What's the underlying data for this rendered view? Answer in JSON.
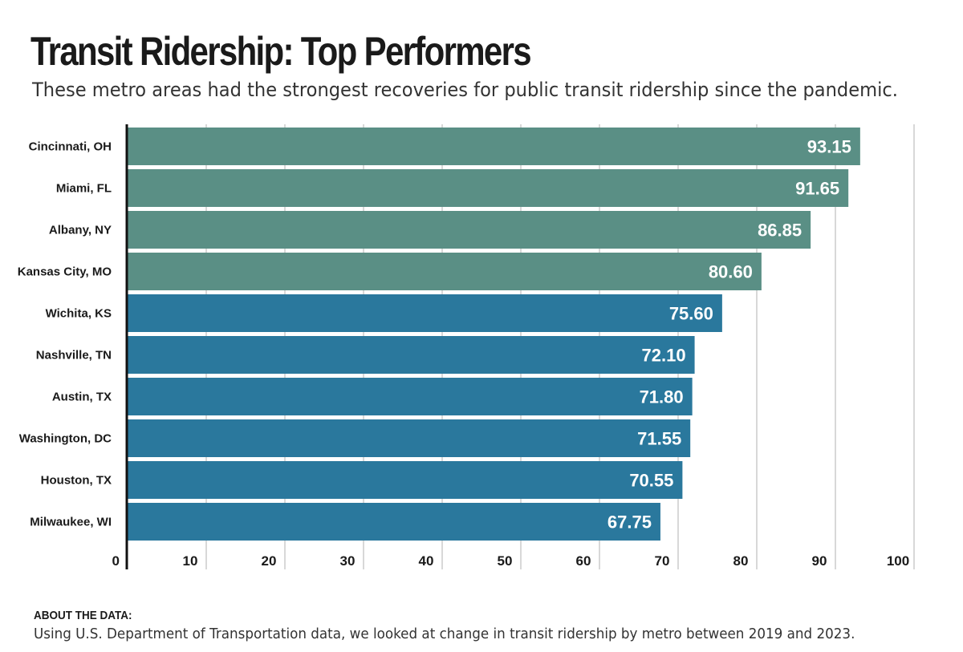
{
  "title": "Transit Ridership: Top Performers",
  "subtitle": "These metro areas had the strongest recoveries for public transit ridership since the pandemic.",
  "about": {
    "heading": "ABOUT THE DATA:",
    "text": "Using U.S. Department of Transportation data, we looked at change in transit ridership by metro between 2019 and 2023."
  },
  "colors": {
    "top_group": "#5a8f85",
    "other_group": "#2a789d",
    "grid": "#cccccc",
    "axis": "#111111"
  },
  "chart_data": {
    "type": "bar",
    "orientation": "horizontal",
    "categories": [
      "Cincinnati, OH",
      "Miami, FL",
      "Albany, NY",
      "Kansas City, MO",
      "Wichita, KS",
      "Nashville, TN",
      "Austin, TX",
      "Washington, DC",
      "Houston, TX",
      "Milwaukee, WI"
    ],
    "values": [
      93.15,
      91.65,
      86.85,
      80.6,
      75.6,
      72.1,
      71.8,
      71.55,
      70.55,
      67.75
    ],
    "value_labels": [
      "93.15",
      "91.65",
      "86.85",
      "80.60",
      "75.60",
      "72.10",
      "71.80",
      "71.55",
      "70.55",
      "67.75"
    ],
    "bar_groups": [
      "top",
      "top",
      "top",
      "top",
      "other",
      "other",
      "other",
      "other",
      "other",
      "other"
    ],
    "xlim": [
      0,
      100
    ],
    "xticks": [
      0,
      10,
      20,
      30,
      40,
      50,
      60,
      70,
      80,
      90,
      100
    ],
    "grid": true,
    "title": "Transit Ridership: Top Performers",
    "xlabel": "",
    "ylabel": ""
  }
}
